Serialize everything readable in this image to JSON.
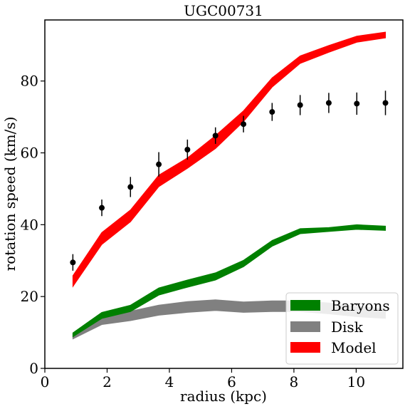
{
  "chart_data": {
    "type": "line",
    "title": "UGC00731",
    "xlabel": "radius (kpc)",
    "ylabel": "rotation speed (km/s)",
    "xlim": [
      0,
      11.5
    ],
    "ylim": [
      0,
      97
    ],
    "xticks": [
      0,
      2,
      4,
      6,
      8,
      10
    ],
    "yticks": [
      0,
      20,
      40,
      60,
      80
    ],
    "grid": false,
    "legend_position": "lower-right",
    "colors": {
      "baryons": "#008000",
      "disk": "#808080",
      "model": "#ff0000",
      "observed": "#000000"
    },
    "observed": {
      "x": [
        0.9,
        1.83,
        2.75,
        3.66,
        4.58,
        5.48,
        6.38,
        7.3,
        8.2,
        9.12,
        10.02,
        10.94
      ],
      "y": [
        29.5,
        44.7,
        50.5,
        56.8,
        60.9,
        64.8,
        68.0,
        71.4,
        73.3,
        73.9,
        73.7,
        73.9
      ],
      "err": [
        2.3,
        2.3,
        2.8,
        3.4,
        2.8,
        2.3,
        2.3,
        2.5,
        2.8,
        2.8,
        3.1,
        3.4
      ]
    },
    "series": [
      {
        "name": "Disk",
        "x": [
          0.9,
          1.83,
          2.75,
          3.66,
          4.58,
          5.48,
          6.38,
          7.3,
          8.2,
          9.12,
          10.02,
          10.94
        ],
        "lower": [
          8.2,
          12.2,
          13.3,
          14.8,
          15.6,
          16.1,
          15.6,
          15.8,
          15.8,
          15.2,
          14.4,
          13.9
        ],
        "upper": [
          9.6,
          14.6,
          15.9,
          17.6,
          18.6,
          19.1,
          18.5,
          18.8,
          18.8,
          18.2,
          17.2,
          16.6
        ]
      },
      {
        "name": "Baryons",
        "x": [
          0.9,
          1.83,
          2.75,
          3.66,
          4.58,
          5.48,
          6.38,
          7.3,
          8.2,
          9.12,
          10.02,
          10.94
        ],
        "lower": [
          8.8,
          13.9,
          15.8,
          20.4,
          22.6,
          24.6,
          28.3,
          34.0,
          37.5,
          38.1,
          38.7,
          38.4
        ],
        "upper": [
          9.9,
          15.6,
          17.6,
          22.4,
          24.6,
          26.6,
          30.1,
          35.6,
          38.9,
          39.2,
          40.0,
          39.6
        ]
      },
      {
        "name": "Model",
        "x": [
          0.9,
          1.83,
          2.75,
          3.66,
          4.58,
          5.48,
          6.38,
          7.3,
          8.2,
          9.12,
          10.02,
          10.94
        ],
        "lower": [
          22.8,
          34.5,
          40.8,
          50.6,
          55.7,
          61.2,
          68.7,
          78.3,
          84.9,
          88.0,
          90.8,
          92.0
        ],
        "upper": [
          25.8,
          37.8,
          44.1,
          53.8,
          58.6,
          64.8,
          71.7,
          80.9,
          87.0,
          89.9,
          92.5,
          93.6
        ]
      }
    ],
    "legend": [
      "Baryons",
      "Disk",
      "Model"
    ]
  }
}
